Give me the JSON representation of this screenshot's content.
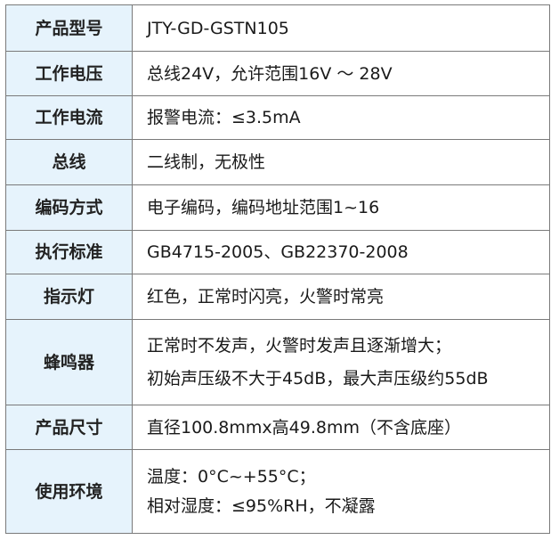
{
  "rows": [
    {
      "label": "产品型号",
      "lines": [
        "JTY-GD-GSTN105"
      ]
    },
    {
      "label": "工作电压",
      "lines": [
        "总线24V，允许范围16V ～ 28V"
      ]
    },
    {
      "label": "工作电流",
      "lines": [
        "报警电流：≤3.5mA"
      ]
    },
    {
      "label": "总线",
      "lines": [
        "二线制，无极性"
      ]
    },
    {
      "label": "编码方式",
      "lines": [
        "电子编码，编码地址范围1~16"
      ]
    },
    {
      "label": "执行标准",
      "lines": [
        "GB4715-2005、GB22370-2008"
      ]
    },
    {
      "label": "指示灯",
      "lines": [
        "红色，正常时闪亮，火警时常亮"
      ]
    },
    {
      "label": "蜂鸣器",
      "lines": [
        "正常时不发声，火警时发声且逐渐增大；",
        "初始声压级不大于45dB，最大声压级约55dB"
      ]
    },
    {
      "label": "产品尺寸",
      "lines": [
        "直径100.8mmx高49.8mm（不含底座）"
      ]
    },
    {
      "label": "使用环境",
      "lines": [
        "温度：0°C~+55°C；",
        "相对湿度：≤95%RH，不凝露"
      ]
    }
  ],
  "colors": {
    "label_bg": "#e6f3fc",
    "border": "#7a7a7a"
  }
}
